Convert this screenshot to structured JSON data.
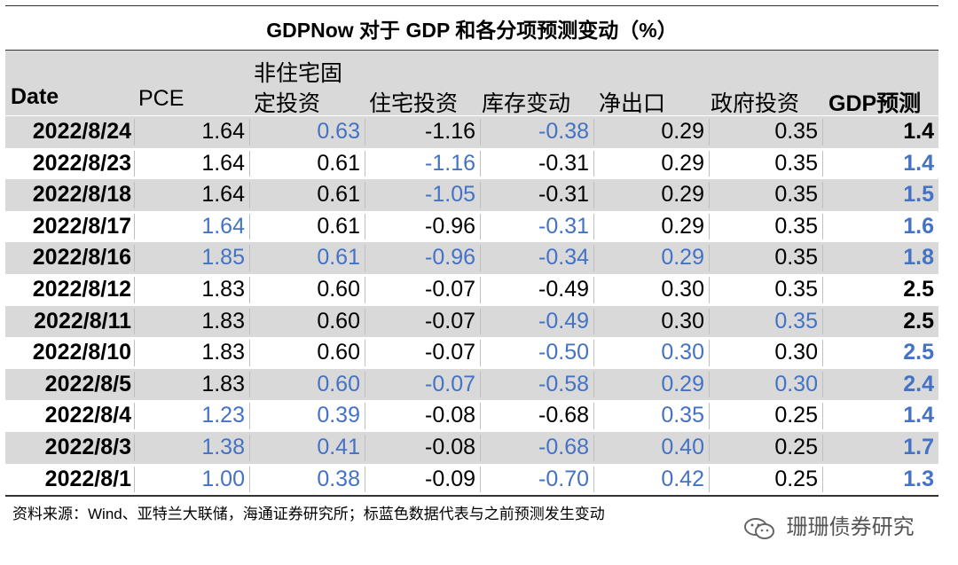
{
  "title": "GDPNow 对于 GDP 和各分项预测变动（%）",
  "columns": {
    "date": "Date",
    "pce": "PCE",
    "nonres_line1": "非住宅固",
    "nonres_line2": "定投资",
    "residential": "住宅投资",
    "inventory": "库存变动",
    "net_exports": "净出口",
    "government": "政府投资",
    "gdp": "GDP预测"
  },
  "colors": {
    "changed": "#4472c4",
    "unchanged": "#000000",
    "band": "#d9d9d9"
  },
  "rows": [
    {
      "date": "2022/8/24",
      "pce": {
        "v": "1.64",
        "c": "black"
      },
      "nonres": {
        "v": "0.63",
        "c": "blue"
      },
      "res": {
        "v": "-1.16",
        "c": "black"
      },
      "inv": {
        "v": "-0.38",
        "c": "blue"
      },
      "net": {
        "v": "0.29",
        "c": "black"
      },
      "gov": {
        "v": "0.35",
        "c": "black"
      },
      "gdp": {
        "v": "1.4",
        "c": "black"
      }
    },
    {
      "date": "2022/8/23",
      "pce": {
        "v": "1.64",
        "c": "black"
      },
      "nonres": {
        "v": "0.61",
        "c": "black"
      },
      "res": {
        "v": "-1.16",
        "c": "blue"
      },
      "inv": {
        "v": "-0.31",
        "c": "black"
      },
      "net": {
        "v": "0.29",
        "c": "black"
      },
      "gov": {
        "v": "0.35",
        "c": "black"
      },
      "gdp": {
        "v": "1.4",
        "c": "blue"
      }
    },
    {
      "date": "2022/8/18",
      "pce": {
        "v": "1.64",
        "c": "black"
      },
      "nonres": {
        "v": "0.61",
        "c": "black"
      },
      "res": {
        "v": "-1.05",
        "c": "blue"
      },
      "inv": {
        "v": "-0.31",
        "c": "black"
      },
      "net": {
        "v": "0.29",
        "c": "black"
      },
      "gov": {
        "v": "0.35",
        "c": "black"
      },
      "gdp": {
        "v": "1.5",
        "c": "blue"
      }
    },
    {
      "date": "2022/8/17",
      "pce": {
        "v": "1.64",
        "c": "blue"
      },
      "nonres": {
        "v": "0.61",
        "c": "black"
      },
      "res": {
        "v": "-0.96",
        "c": "black"
      },
      "inv": {
        "v": "-0.31",
        "c": "blue"
      },
      "net": {
        "v": "0.29",
        "c": "black"
      },
      "gov": {
        "v": "0.35",
        "c": "black"
      },
      "gdp": {
        "v": "1.6",
        "c": "blue"
      }
    },
    {
      "date": "2022/8/16",
      "pce": {
        "v": "1.85",
        "c": "blue"
      },
      "nonres": {
        "v": "0.61",
        "c": "blue"
      },
      "res": {
        "v": "-0.96",
        "c": "blue"
      },
      "inv": {
        "v": "-0.34",
        "c": "blue"
      },
      "net": {
        "v": "0.29",
        "c": "blue"
      },
      "gov": {
        "v": "0.35",
        "c": "black"
      },
      "gdp": {
        "v": "1.8",
        "c": "blue"
      }
    },
    {
      "date": "2022/8/12",
      "pce": {
        "v": "1.83",
        "c": "black"
      },
      "nonres": {
        "v": "0.60",
        "c": "black"
      },
      "res": {
        "v": "-0.07",
        "c": "black"
      },
      "inv": {
        "v": "-0.49",
        "c": "black"
      },
      "net": {
        "v": "0.30",
        "c": "black"
      },
      "gov": {
        "v": "0.35",
        "c": "black"
      },
      "gdp": {
        "v": "2.5",
        "c": "black"
      }
    },
    {
      "date": "2022/8/11",
      "pce": {
        "v": "1.83",
        "c": "black"
      },
      "nonres": {
        "v": "0.60",
        "c": "black"
      },
      "res": {
        "v": "-0.07",
        "c": "black"
      },
      "inv": {
        "v": "-0.49",
        "c": "blue"
      },
      "net": {
        "v": "0.30",
        "c": "black"
      },
      "gov": {
        "v": "0.35",
        "c": "blue"
      },
      "gdp": {
        "v": "2.5",
        "c": "black"
      }
    },
    {
      "date": "2022/8/10",
      "pce": {
        "v": "1.83",
        "c": "black"
      },
      "nonres": {
        "v": "0.60",
        "c": "black"
      },
      "res": {
        "v": "-0.07",
        "c": "black"
      },
      "inv": {
        "v": "-0.50",
        "c": "blue"
      },
      "net": {
        "v": "0.30",
        "c": "blue"
      },
      "gov": {
        "v": "0.30",
        "c": "black"
      },
      "gdp": {
        "v": "2.5",
        "c": "blue"
      }
    },
    {
      "date": "2022/8/5",
      "pce": {
        "v": "1.83",
        "c": "black"
      },
      "nonres": {
        "v": "0.60",
        "c": "blue"
      },
      "res": {
        "v": "-0.07",
        "c": "blue"
      },
      "inv": {
        "v": "-0.58",
        "c": "blue"
      },
      "net": {
        "v": "0.29",
        "c": "blue"
      },
      "gov": {
        "v": "0.30",
        "c": "blue"
      },
      "gdp": {
        "v": "2.4",
        "c": "blue"
      }
    },
    {
      "date": "2022/8/4",
      "pce": {
        "v": "1.23",
        "c": "blue"
      },
      "nonres": {
        "v": "0.39",
        "c": "blue"
      },
      "res": {
        "v": "-0.08",
        "c": "black"
      },
      "inv": {
        "v": "-0.68",
        "c": "black"
      },
      "net": {
        "v": "0.35",
        "c": "blue"
      },
      "gov": {
        "v": "0.25",
        "c": "black"
      },
      "gdp": {
        "v": "1.4",
        "c": "blue"
      }
    },
    {
      "date": "2022/8/3",
      "pce": {
        "v": "1.38",
        "c": "blue"
      },
      "nonres": {
        "v": "0.41",
        "c": "blue"
      },
      "res": {
        "v": "-0.08",
        "c": "black"
      },
      "inv": {
        "v": "-0.68",
        "c": "blue"
      },
      "net": {
        "v": "0.40",
        "c": "blue"
      },
      "gov": {
        "v": "0.25",
        "c": "black"
      },
      "gdp": {
        "v": "1.7",
        "c": "blue"
      }
    },
    {
      "date": "2022/8/1",
      "pce": {
        "v": "1.00",
        "c": "blue"
      },
      "nonres": {
        "v": "0.38",
        "c": "blue"
      },
      "res": {
        "v": "-0.09",
        "c": "black"
      },
      "inv": {
        "v": "-0.70",
        "c": "blue"
      },
      "net": {
        "v": "0.42",
        "c": "blue"
      },
      "gov": {
        "v": "0.25",
        "c": "black"
      },
      "gdp": {
        "v": "1.3",
        "c": "blue"
      }
    }
  ],
  "footer": "资料来源：Wind、亚特兰大联储，海通证券研究所；标蓝色数据代表与之前预测发生变动",
  "watermark": {
    "icon": "wechat-icon",
    "text": "珊珊债券研究"
  }
}
